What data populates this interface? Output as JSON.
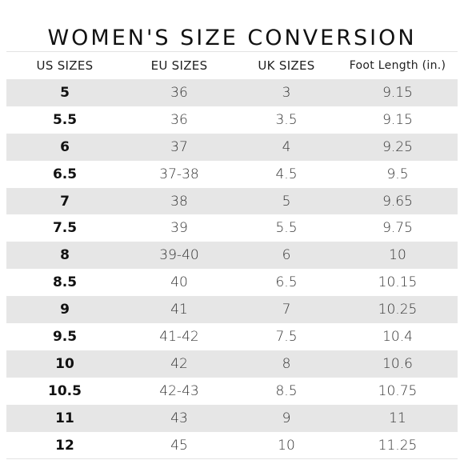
{
  "title": "WOMEN'S SIZE CONVERSION",
  "headers": [
    "US SIZES",
    "EU SIZES",
    "UK SIZES",
    "Foot Length (in.)"
  ],
  "rows": [
    {
      "us": "5",
      "eu": "36",
      "uk": "3",
      "foot": "9.15"
    },
    {
      "us": "5.5",
      "eu": "36",
      "uk": "3.5",
      "foot": "9.15"
    },
    {
      "us": "6",
      "eu": "37",
      "uk": "4",
      "foot": "9.25"
    },
    {
      "us": "6.5",
      "eu": "37-38",
      "uk": "4.5",
      "foot": "9.5"
    },
    {
      "us": "7",
      "eu": "38",
      "uk": "5",
      "foot": "9.65"
    },
    {
      "us": "7.5",
      "eu": "39",
      "uk": "5.5",
      "foot": "9.75"
    },
    {
      "us": "8",
      "eu": "39-40",
      "uk": "6",
      "foot": "10"
    },
    {
      "us": "8.5",
      "eu": "40",
      "uk": "6.5",
      "foot": "10.15"
    },
    {
      "us": "9",
      "eu": "41",
      "uk": "7",
      "foot": "10.25"
    },
    {
      "us": "9.5",
      "eu": "41-42",
      "uk": "7.5",
      "foot": "10.4"
    },
    {
      "us": "10",
      "eu": "42",
      "uk": "8",
      "foot": "10.6"
    },
    {
      "us": "10.5",
      "eu": "42-43",
      "uk": "8.5",
      "foot": "10.75"
    },
    {
      "us": "11",
      "eu": "43",
      "uk": "9",
      "foot": "11"
    },
    {
      "us": "12",
      "eu": "45",
      "uk": "10",
      "foot": "11.25"
    }
  ],
  "colors": {
    "shaded_row": "#e6e6e6",
    "plain_row": "#ffffff",
    "text": "#1f1f1f"
  }
}
